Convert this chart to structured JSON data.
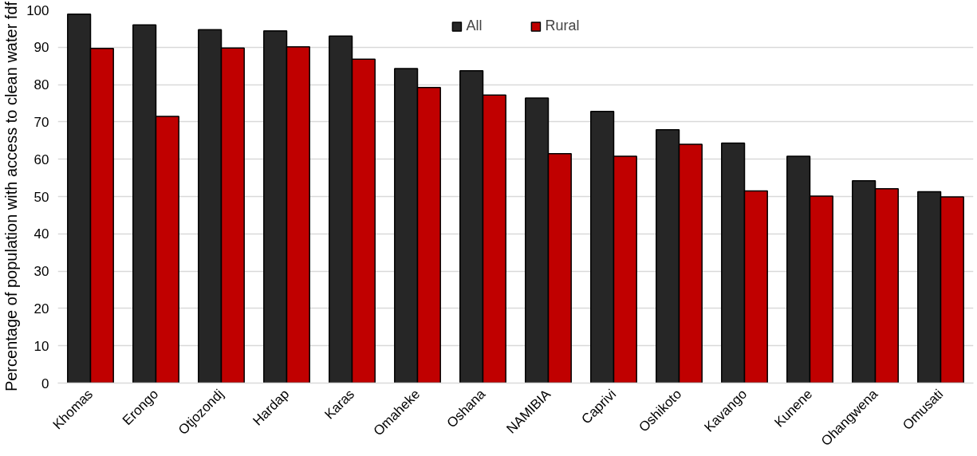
{
  "chart_data": {
    "type": "bar",
    "ylabel": "Percentage of population with access to clean water fdf",
    "categories": [
      "Khomas",
      "Erongo",
      "Otjozondj",
      "Hardap",
      "Karas",
      "Omaheke",
      "Oshana",
      "NAMIBIA",
      "Caprivi",
      "Oshikoto",
      "Kavango",
      "Kunene",
      "Ohangwena",
      "Omusati"
    ],
    "series": [
      {
        "name": "All",
        "color": "#262626",
        "values": [
          98.9,
          96.0,
          94.7,
          94.4,
          93.0,
          84.3,
          83.7,
          76.4,
          72.8,
          67.9,
          64.3,
          60.8,
          54.2,
          51.3
        ]
      },
      {
        "name": "Rural",
        "color": "#c00000",
        "values": [
          89.7,
          71.5,
          89.8,
          90.1,
          86.8,
          79.2,
          77.2,
          61.5,
          60.8,
          64.0,
          51.5,
          50.1,
          52.1,
          49.9
        ]
      }
    ],
    "ylim": [
      0,
      100
    ],
    "yticks": [
      0,
      10,
      20,
      30,
      40,
      50,
      60,
      70,
      80,
      90,
      100
    ],
    "grid": "y",
    "legend": "top"
  }
}
